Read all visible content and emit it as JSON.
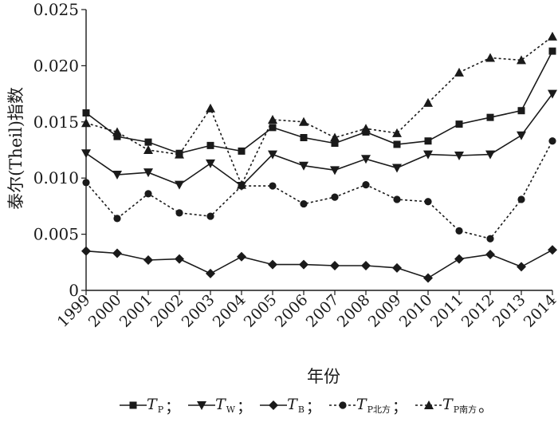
{
  "chart_data": {
    "type": "line",
    "xlabel": "年份",
    "ylabel": "泰尔(Theil)指数",
    "categories": [
      "1999",
      "2000",
      "2001",
      "2002",
      "2003",
      "2004",
      "2005",
      "2006",
      "2007",
      "2008",
      "2009",
      "2010",
      "2011",
      "2012",
      "2013",
      "2014"
    ],
    "ylim": [
      0,
      0.025
    ],
    "yticks": [
      "0",
      "0.005",
      "0.010",
      "0.015",
      "0.020",
      "0.025"
    ],
    "grid": false,
    "legend_position": "bottom",
    "series": [
      {
        "name": "T",
        "sub": "P",
        "sep": "；",
        "marker": "square",
        "dash": "solid",
        "values": [
          0.0158,
          0.0137,
          0.0132,
          0.0122,
          0.0129,
          0.0124,
          0.0145,
          0.0136,
          0.0131,
          0.0141,
          0.013,
          0.0133,
          0.0148,
          0.0154,
          0.016,
          0.0213
        ]
      },
      {
        "name": "T",
        "sub": "W",
        "sep": "；",
        "marker": "triangle-down",
        "dash": "solid",
        "values": [
          0.0122,
          0.0103,
          0.0105,
          0.0094,
          0.0113,
          0.0093,
          0.0121,
          0.0111,
          0.0107,
          0.0117,
          0.0109,
          0.0121,
          0.012,
          0.0121,
          0.0138,
          0.0175
        ]
      },
      {
        "name": "T",
        "sub": "B",
        "sep": "；",
        "marker": "diamond",
        "dash": "solid",
        "values": [
          0.0035,
          0.0033,
          0.0027,
          0.0028,
          0.0015,
          0.003,
          0.0023,
          0.0023,
          0.0022,
          0.0022,
          0.002,
          0.0011,
          0.0028,
          0.0032,
          0.0021,
          0.0036
        ]
      },
      {
        "name": "T",
        "sub": "P北方",
        "sep": "；",
        "marker": "circle",
        "dash": "dashed",
        "values": [
          0.0096,
          0.0064,
          0.0086,
          0.0069,
          0.0066,
          0.0093,
          0.0093,
          0.0077,
          0.0083,
          0.0094,
          0.0081,
          0.0079,
          0.0053,
          0.0046,
          0.0081,
          0.0133
        ]
      },
      {
        "name": "T",
        "sub": "P南方",
        "sep": "。",
        "marker": "triangle-up",
        "dash": "dashed",
        "values": [
          0.0149,
          0.0141,
          0.0125,
          0.0121,
          0.0162,
          0.0094,
          0.0152,
          0.015,
          0.0136,
          0.0144,
          0.014,
          0.0167,
          0.0194,
          0.0207,
          0.0205,
          0.0226
        ]
      }
    ]
  }
}
